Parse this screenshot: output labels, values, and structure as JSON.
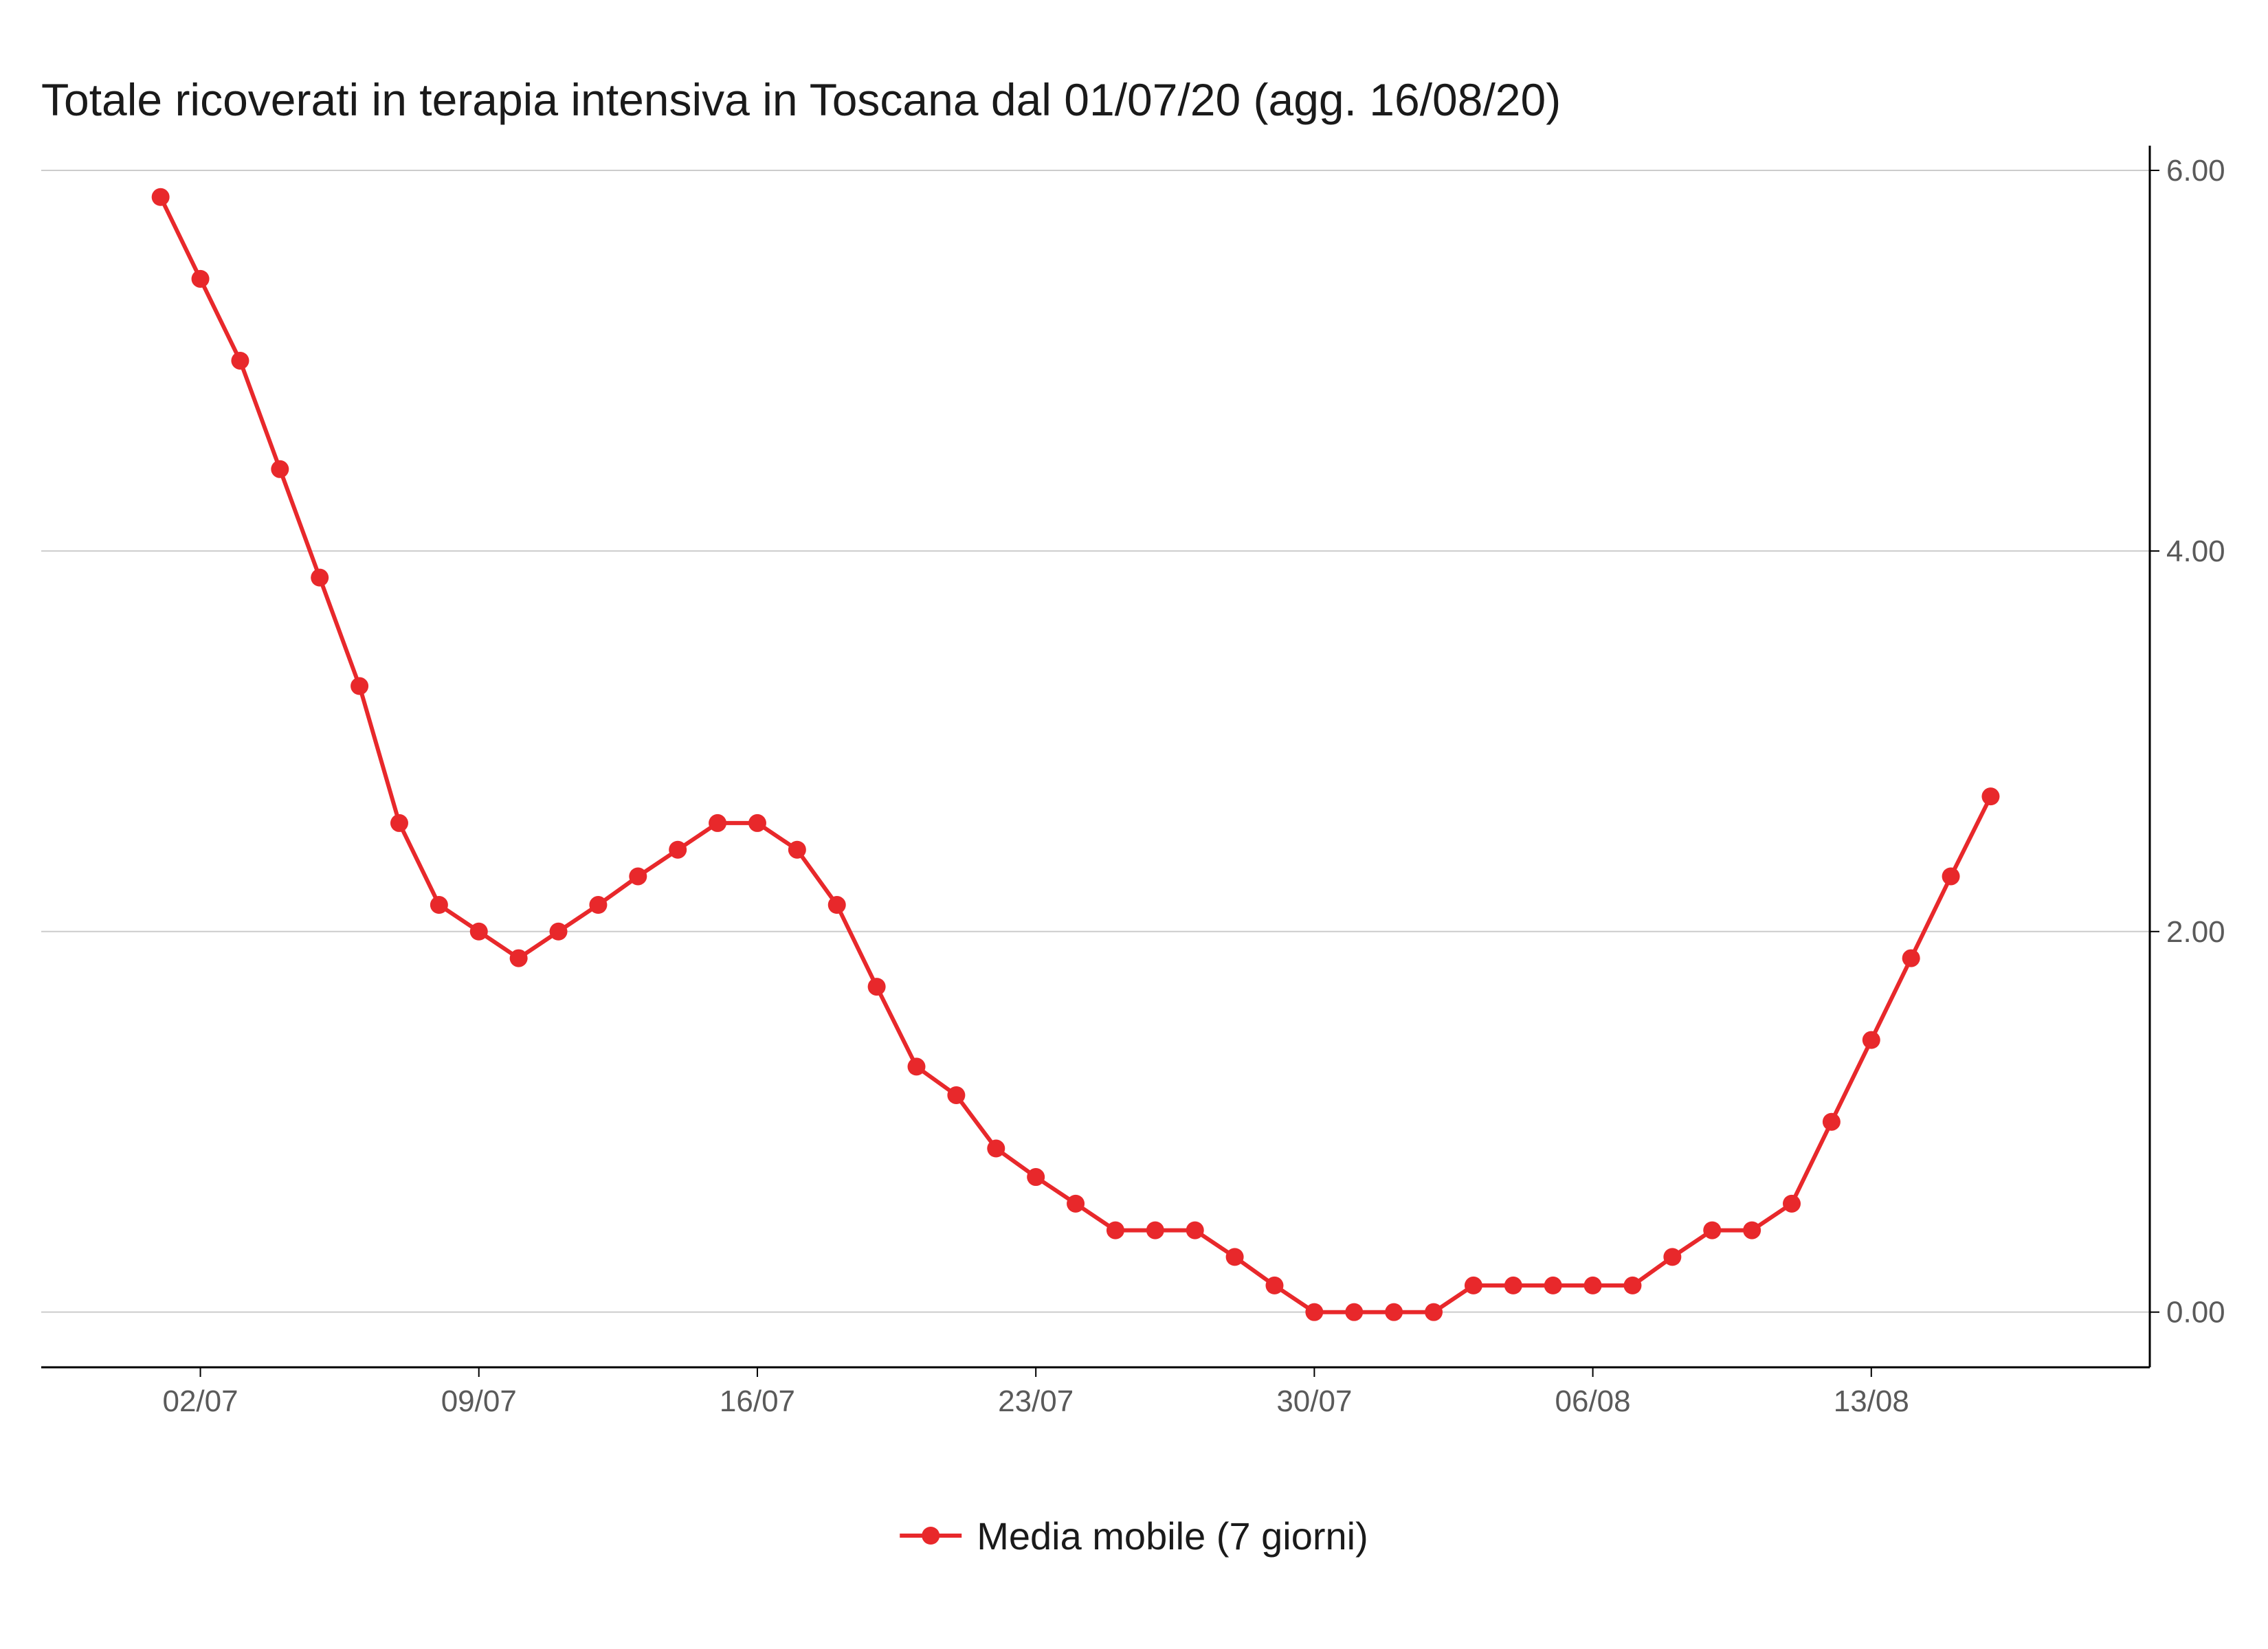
{
  "colors": {
    "series": "#e8282b",
    "grid": "#cccccc",
    "axis": "#000000",
    "tick_text": "#5a5a5a",
    "title_text": "#1a1a1a"
  },
  "chart_data": {
    "type": "line",
    "title": "Totale ricoverati in terapia intensiva in Toscana dal 01/07/20 (agg. 16/08/20)",
    "xlabel": "",
    "ylabel": "",
    "x_axis": {
      "start": "2020-07-01",
      "end": "2020-08-16",
      "range": [
        "2020-06-28",
        "2020-08-20"
      ],
      "ticks": [
        {
          "date": "2020-07-02",
          "label": "02/07"
        },
        {
          "date": "2020-07-09",
          "label": "09/07"
        },
        {
          "date": "2020-07-16",
          "label": "16/07"
        },
        {
          "date": "2020-07-23",
          "label": "23/07"
        },
        {
          "date": "2020-07-30",
          "label": "30/07"
        },
        {
          "date": "2020-08-06",
          "label": "06/08"
        },
        {
          "date": "2020-08-13",
          "label": "13/08"
        }
      ]
    },
    "y_axis": {
      "position": "right",
      "range": [
        -0.29,
        6.13
      ],
      "ticks": [
        {
          "value": 0,
          "label": "0.00"
        },
        {
          "value": 2,
          "label": "2.00"
        },
        {
          "value": 4,
          "label": "4.00"
        },
        {
          "value": 6,
          "label": "6.00"
        }
      ],
      "grid": true
    },
    "legend": {
      "position": "bottom"
    },
    "series": [
      {
        "name": "Media mobile (7 giorni)",
        "color": "#e8282b",
        "values": [
          5.86,
          5.43,
          5.0,
          4.43,
          3.86,
          3.29,
          2.57,
          2.14,
          2.0,
          1.86,
          2.0,
          2.14,
          2.29,
          2.43,
          2.57,
          2.57,
          2.43,
          2.14,
          1.71,
          1.29,
          1.14,
          0.86,
          0.71,
          0.57,
          0.43,
          0.43,
          0.43,
          0.29,
          0.14,
          0.0,
          0.0,
          0.0,
          0.0,
          0.14,
          0.14,
          0.14,
          0.14,
          0.14,
          0.29,
          0.43,
          0.43,
          0.57,
          1.0,
          1.43,
          1.86,
          2.29,
          2.71
        ]
      }
    ]
  }
}
